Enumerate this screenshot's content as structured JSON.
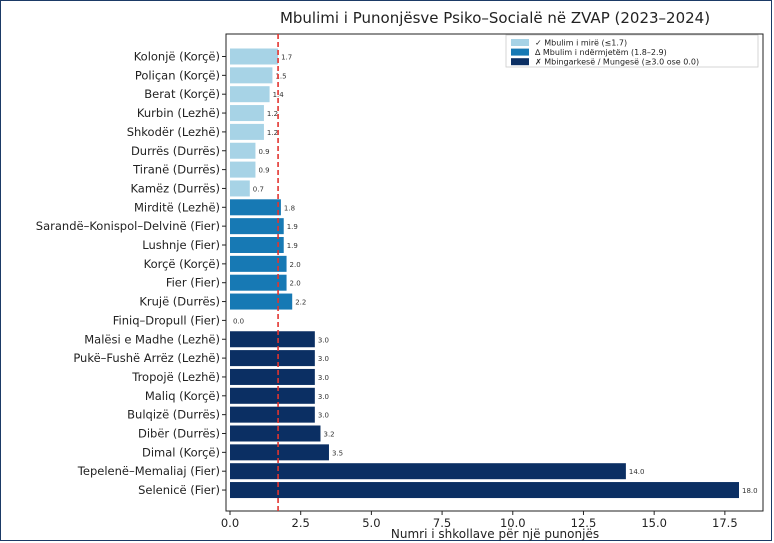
{
  "chart_data": {
    "type": "bar",
    "orientation": "horizontal",
    "title": "Mbulimi i Punonjësve Psiko–Socialë në ZVAP (2023–2024)",
    "xlabel": "Numri i shkollave për një punonjës",
    "ylabel": "",
    "xlim": [
      0,
      18.7
    ],
    "xticks": [
      0.0,
      2.5,
      5.0,
      7.5,
      10.0,
      12.5,
      15.0,
      17.5
    ],
    "xtick_labels": [
      "0.0",
      "2.5",
      "5.0",
      "7.5",
      "10.0",
      "12.5",
      "15.0",
      "17.5"
    ],
    "reference_line": {
      "x": 1.7,
      "style": "dashed",
      "color": "#e3342f"
    },
    "legend_position": "top-right",
    "legend": [
      {
        "key": "good",
        "label": "✓ Mbulim i mirë (≤1.7)",
        "color": "#a7d3e6"
      },
      {
        "key": "mid",
        "label": "∆ Mbulim i ndërmjetëm (1.8–2.9)",
        "color": "#1779b4"
      },
      {
        "key": "over",
        "label": "✗ Mbingarkesë / Mungesë (≥3.0 ose 0.0)",
        "color": "#0b2f63"
      }
    ],
    "categories": [
      "Kolonjë (Korçë)",
      "Poliçan (Korçë)",
      "Berat (Korçë)",
      "Kurbin (Lezhë)",
      "Shkodër (Lezhë)",
      "Durrës (Durrës)",
      "Tiranë (Durrës)",
      "Kamëz (Durrës)",
      "Mirditë (Lezhë)",
      "Sarandë–Konispol–Delvinë (Fier)",
      "Lushnje (Fier)",
      "Korçë (Korçë)",
      "Fier (Fier)",
      "Krujë (Durrës)",
      "Finiq–Dropull (Fier)",
      "Malësi e Madhe (Lezhë)",
      "Pukë–Fushë Arrëz (Lezhë)",
      "Tropojë (Lezhë)",
      "Maliq (Korçë)",
      "Bulqizë (Durrës)",
      "Dibër (Durrës)",
      "Dimal (Korçë)",
      "Tepelenë–Memaliaj (Fier)",
      "Selenicë (Fier)"
    ],
    "values": [
      1.7,
      1.5,
      1.4,
      1.2,
      1.2,
      0.9,
      0.9,
      0.7,
      1.8,
      1.9,
      1.9,
      2.0,
      2.0,
      2.2,
      0.0,
      3.0,
      3.0,
      3.0,
      3.0,
      3.0,
      3.2,
      3.5,
      14.0,
      18.0
    ],
    "value_labels": [
      "1.7",
      "1.5",
      "1.4",
      "1.2",
      "1.2",
      "0.9",
      "0.9",
      "0.7",
      "1.8",
      "1.9",
      "1.9",
      "2.0",
      "2.0",
      "2.2",
      "0.0",
      "3.0",
      "3.0",
      "3.0",
      "3.0",
      "3.0",
      "3.2",
      "3.5",
      "14.0",
      "18.0"
    ],
    "groups": [
      "good",
      "good",
      "good",
      "good",
      "good",
      "good",
      "good",
      "good",
      "mid",
      "mid",
      "mid",
      "mid",
      "mid",
      "mid",
      "over",
      "over",
      "over",
      "over",
      "over",
      "over",
      "over",
      "over",
      "over",
      "over"
    ]
  }
}
